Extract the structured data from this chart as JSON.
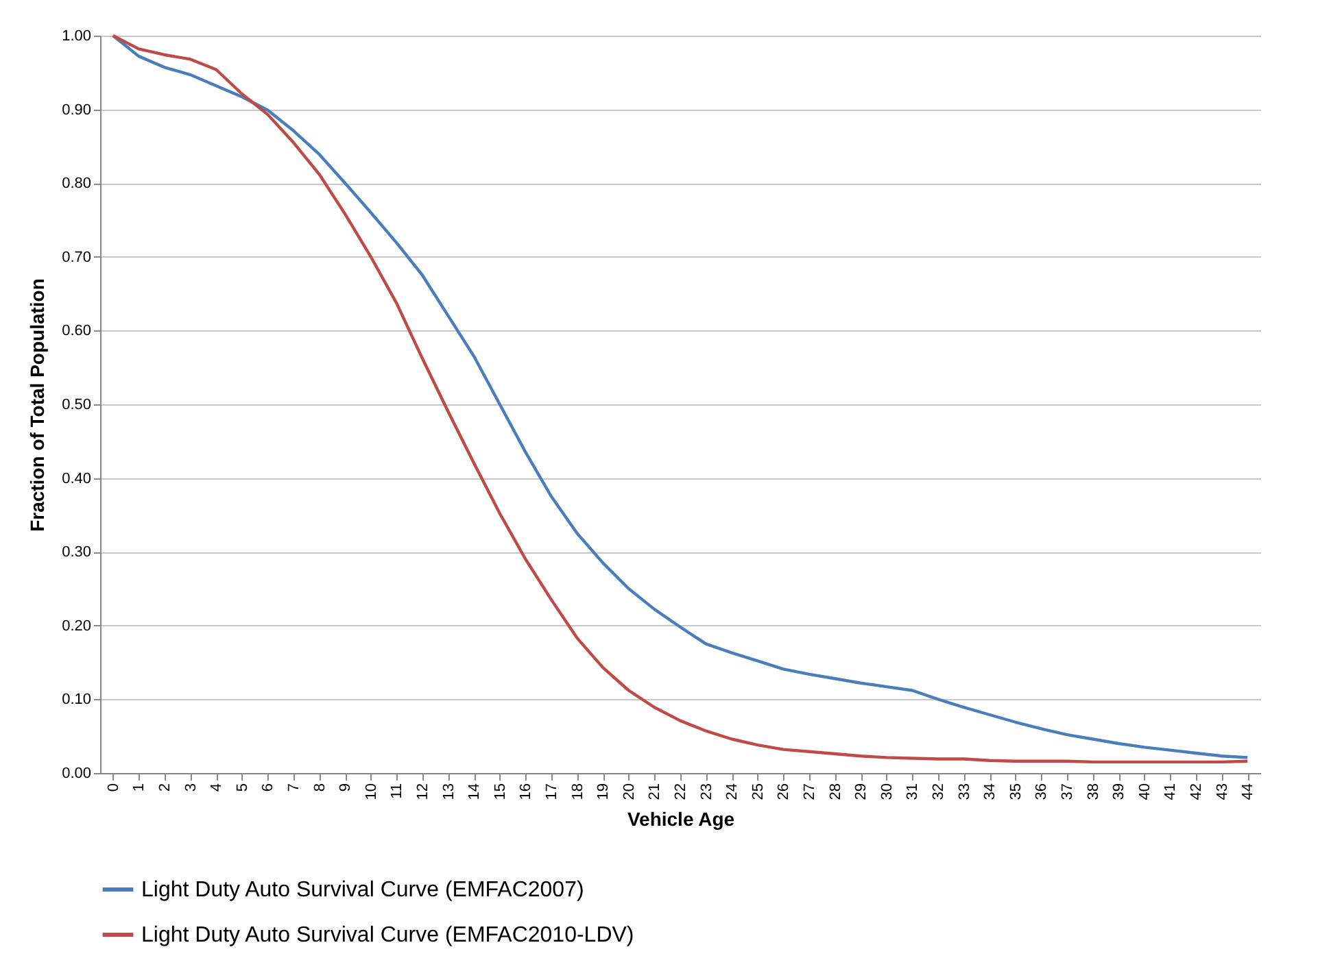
{
  "chart_data": {
    "type": "line",
    "xlabel": "Vehicle Age",
    "ylabel": "Fraction of Total Population",
    "categories": [
      "0",
      "1",
      "2",
      "3",
      "4",
      "5",
      "6",
      "7",
      "8",
      "9",
      "10",
      "11",
      "12",
      "13",
      "14",
      "15",
      "16",
      "17",
      "18",
      "19",
      "20",
      "21",
      "22",
      "23",
      "24",
      "25",
      "26",
      "27",
      "28",
      "29",
      "30",
      "31",
      "32",
      "33",
      "34",
      "35",
      "36",
      "37",
      "38",
      "39",
      "40",
      "41",
      "42",
      "43",
      "44"
    ],
    "series": [
      {
        "name": "Light Duty Auto Survival Curve (EMFAC2007)",
        "color": "#4a7ebb",
        "values": [
          1.0,
          0.972,
          0.957,
          0.947,
          0.932,
          0.917,
          0.899,
          0.871,
          0.839,
          0.8,
          0.76,
          0.719,
          0.675,
          0.62,
          0.565,
          0.5,
          0.435,
          0.375,
          0.325,
          0.285,
          0.25,
          0.222,
          0.198,
          0.175,
          0.163,
          0.152,
          0.141,
          0.134,
          0.128,
          0.122,
          0.117,
          0.112,
          0.1,
          0.089,
          0.079,
          0.069,
          0.06,
          0.052,
          0.046,
          0.04,
          0.035,
          0.031,
          0.027,
          0.023,
          0.021
        ]
      },
      {
        "name": "Light Duty Auto Survival Curve (EMFAC2010-LDV)",
        "color": "#be4b48",
        "values": [
          1.0,
          0.982,
          0.974,
          0.968,
          0.954,
          0.921,
          0.893,
          0.855,
          0.812,
          0.758,
          0.7,
          0.637,
          0.562,
          0.49,
          0.42,
          0.352,
          0.29,
          0.235,
          0.183,
          0.143,
          0.112,
          0.089,
          0.071,
          0.057,
          0.046,
          0.038,
          0.032,
          0.029,
          0.026,
          0.023,
          0.021,
          0.02,
          0.019,
          0.019,
          0.017,
          0.016,
          0.016,
          0.016,
          0.015,
          0.015,
          0.015,
          0.015,
          0.015,
          0.015,
          0.016
        ]
      }
    ],
    "ylim": [
      0,
      1
    ],
    "yticks": [
      {
        "value": 0,
        "label": "0.00"
      },
      {
        "value": 0.1,
        "label": "0.10"
      },
      {
        "value": 0.2,
        "label": "0.20"
      },
      {
        "value": 0.3,
        "label": "0.30"
      },
      {
        "value": 0.4,
        "label": "0.40"
      },
      {
        "value": 0.5,
        "label": "0.50"
      },
      {
        "value": 0.6,
        "label": "0.60"
      },
      {
        "value": 0.7,
        "label": "0.70"
      },
      {
        "value": 0.8,
        "label": "0.80"
      },
      {
        "value": 0.9,
        "label": "0.90"
      },
      {
        "value": 1,
        "label": "1.00"
      }
    ],
    "grid": "y",
    "legend": "bottom",
    "marker": "none",
    "line_style": "solid"
  }
}
